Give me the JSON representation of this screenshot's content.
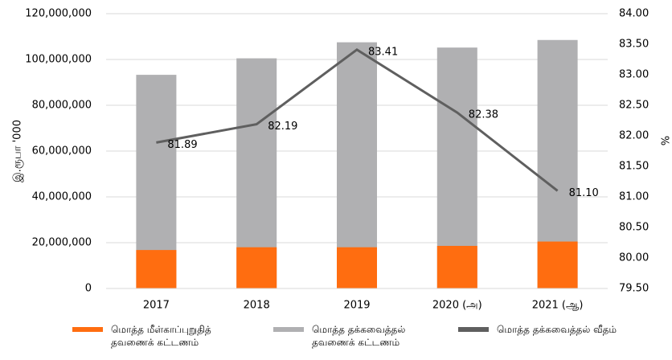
{
  "chart_data": {
    "type": "bar",
    "ylabel": "இ.ரூபா '000",
    "y2label": "%",
    "categories": [
      "2017",
      "2018",
      "2019",
      "2020 (அ)",
      "2021 (ஆ)"
    ],
    "series": [
      {
        "name": "மொத்த மீள்காப்புறுதித் தவணைக் கட்டணம்",
        "type": "bar",
        "color": "#ff6d10",
        "values": [
          16800000,
          18000000,
          18000000,
          18600000,
          20500000
        ]
      },
      {
        "name": "மொத்த தக்கவைத்தல் தவணைக் கட்டணம்",
        "type": "bar",
        "color": "#b0b0b2",
        "values": [
          93300000,
          100500000,
          107500000,
          105200000,
          108500000
        ]
      },
      {
        "name": "மொத்த தக்கவைத்தல் வீதம்",
        "type": "line",
        "axis": "y2",
        "color": "#5f5f5f",
        "values": [
          81.89,
          82.19,
          83.41,
          82.38,
          81.1
        ],
        "value_labels": [
          "81.89",
          "82.19",
          "83.41",
          "82.38",
          "81.10"
        ]
      }
    ],
    "ylim": [
      0,
      120000000
    ],
    "yticks": [
      {
        "value": 0,
        "label": "0"
      },
      {
        "value": 20000000,
        "label": "20,000,000"
      },
      {
        "value": 40000000,
        "label": "40,000,000"
      },
      {
        "value": 60000000,
        "label": "60,000,000"
      },
      {
        "value": 80000000,
        "label": "80,000,000"
      },
      {
        "value": 100000000,
        "label": "100,000,000"
      },
      {
        "value": 120000000,
        "label": "120,000,000"
      }
    ],
    "y2lim": [
      79.5,
      84
    ],
    "y2ticks": [
      {
        "value": 79.5,
        "label": "79.50"
      },
      {
        "value": 80,
        "label": "80.00"
      },
      {
        "value": 80.5,
        "label": "80.50"
      },
      {
        "value": 81,
        "label": "81.00"
      },
      {
        "value": 81.5,
        "label": "81.50"
      },
      {
        "value": 82,
        "label": "82.00"
      },
      {
        "value": 82.5,
        "label": "82.50"
      },
      {
        "value": 83,
        "label": "83.00"
      },
      {
        "value": 83.5,
        "label": "83.50"
      },
      {
        "value": 84,
        "label": "84.00"
      }
    ],
    "grid": true
  }
}
